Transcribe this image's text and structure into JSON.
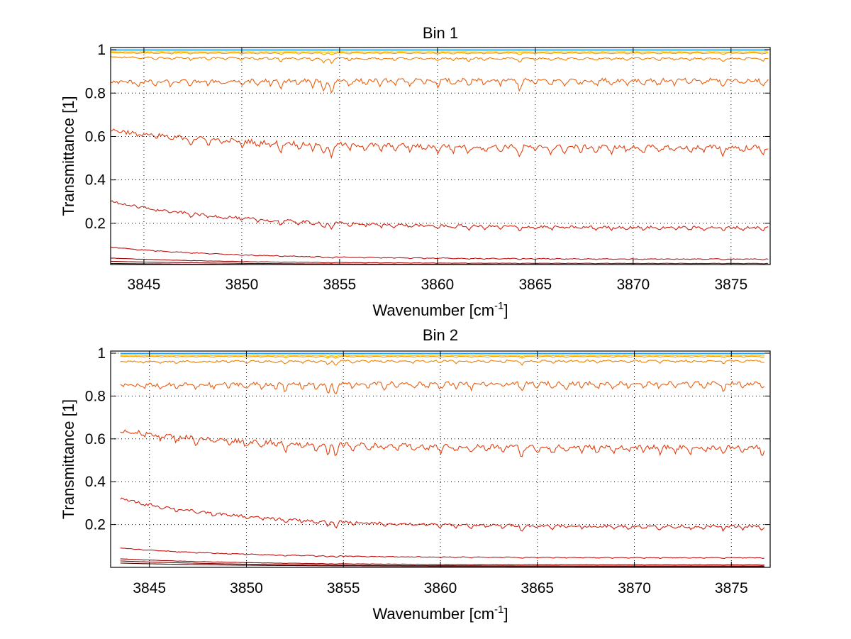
{
  "chart_data": [
    {
      "type": "line",
      "title": "Bin 1",
      "xlabel": "Wavenumber [cm",
      "xlabel_sup": "-1",
      "xlabel_end": "]",
      "ylabel": "Transmittance [1]",
      "xlim": [
        3843.3,
        3877.0
      ],
      "ylim": [
        0.01,
        1.01
      ],
      "xticks": [
        3845,
        3850,
        3855,
        3860,
        3865,
        3870,
        3875
      ],
      "xtick_labels": [
        "3845",
        "3850",
        "3855",
        "3860",
        "3865",
        "3870",
        "3875"
      ],
      "yticks": [
        0.2,
        0.4,
        0.6,
        0.8,
        1.0
      ],
      "ytick_labels": [
        "0.2",
        "0.4",
        "0.6",
        "0.8",
        "1"
      ],
      "grid": true,
      "x_range": [
        3843.3,
        3876.9
      ],
      "series": [
        {
          "color": "#00c8c8",
          "base": 1.0,
          "start": 1.0,
          "dip": 0.0
        },
        {
          "color": "#20a0ff",
          "base": 0.998,
          "start": 0.998,
          "dip": 0.002
        },
        {
          "color": "#ffe000",
          "base": 0.995,
          "start": 0.995,
          "dip": 0.01
        },
        {
          "color": "#ffc000",
          "base": 0.99,
          "start": 0.99,
          "dip": 0.03
        },
        {
          "color": "#f5a000",
          "base": 0.985,
          "start": 0.985,
          "dip": 0.05
        },
        {
          "color": "#f08000",
          "base": 0.96,
          "start": 0.965,
          "dip": 0.12
        },
        {
          "color": "#e86010",
          "base": 0.86,
          "start": 0.85,
          "dip": 0.3
        },
        {
          "color": "#e04010",
          "base": 0.55,
          "start": 0.63,
          "dip": 0.35
        },
        {
          "color": "#d02010",
          "base": 0.18,
          "start": 0.3,
          "dip": 0.2
        },
        {
          "color": "#c01010",
          "base": 0.035,
          "start": 0.09,
          "dip": 0.05
        },
        {
          "color": "#a00808",
          "base": 0.015,
          "start": 0.04,
          "dip": 0.02
        },
        {
          "color": "#800000",
          "base": 0.01,
          "start": 0.025,
          "dip": 0.0
        },
        {
          "color": "#400000",
          "base": 0.008,
          "start": 0.015,
          "dip": 0.0
        }
      ]
    },
    {
      "type": "line",
      "title": "Bin 2",
      "xlabel": "Wavenumber [cm",
      "xlabel_sup": "-1",
      "xlabel_end": "]",
      "ylabel": "Transmittance [1]",
      "xlim": [
        3843.0,
        3877.0
      ],
      "ylim": [
        0.0,
        1.01
      ],
      "xticks": [
        3845,
        3850,
        3855,
        3860,
        3865,
        3870,
        3875
      ],
      "xtick_labels": [
        "3845",
        "3850",
        "3855",
        "3860",
        "3865",
        "3870",
        "3875"
      ],
      "yticks": [
        0.2,
        0.4,
        0.6,
        0.8,
        1.0
      ],
      "ytick_labels": [
        "0.2",
        "0.4",
        "0.6",
        "0.8",
        "1"
      ],
      "grid": true,
      "x_range": [
        3843.5,
        3876.7
      ],
      "series": [
        {
          "color": "#00c8c8",
          "base": 1.0,
          "start": 1.0,
          "dip": 0.0
        },
        {
          "color": "#20a0ff",
          "base": 0.998,
          "start": 0.998,
          "dip": 0.002
        },
        {
          "color": "#ffe000",
          "base": 0.995,
          "start": 0.995,
          "dip": 0.01
        },
        {
          "color": "#ffc000",
          "base": 0.99,
          "start": 0.99,
          "dip": 0.03
        },
        {
          "color": "#f5a000",
          "base": 0.985,
          "start": 0.985,
          "dip": 0.05
        },
        {
          "color": "#f08000",
          "base": 0.965,
          "start": 0.96,
          "dip": 0.12
        },
        {
          "color": "#e86010",
          "base": 0.86,
          "start": 0.85,
          "dip": 0.3
        },
        {
          "color": "#e04010",
          "base": 0.56,
          "start": 0.64,
          "dip": 0.35
        },
        {
          "color": "#d02010",
          "base": 0.19,
          "start": 0.32,
          "dip": 0.2
        },
        {
          "color": "#c01010",
          "base": 0.045,
          "start": 0.09,
          "dip": 0.05
        },
        {
          "color": "#a00808",
          "base": 0.012,
          "start": 0.04,
          "dip": 0.02
        },
        {
          "color": "#800000",
          "base": 0.006,
          "start": 0.03,
          "dip": 0.0
        },
        {
          "color": "#400000",
          "base": 0.004,
          "start": 0.02,
          "dip": 0.0
        }
      ]
    }
  ]
}
